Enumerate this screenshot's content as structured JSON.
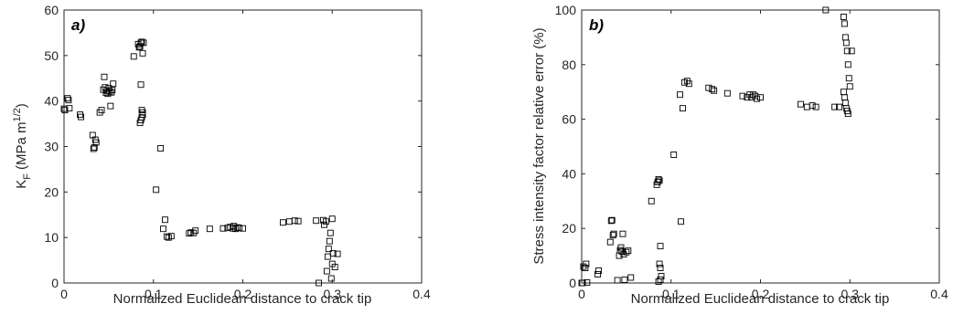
{
  "chart_data": [
    {
      "type": "scatter",
      "panel_label": "a)",
      "title": "",
      "xlabel": "Normalized Euclidean distance to crack tip",
      "ylabel": "K_F (MPa m^{1/2})",
      "ylabel_parts": {
        "k": "K",
        "sub": "F",
        "unit_open": "(MPa m",
        "sup": "1/2",
        "unit_close": ")"
      },
      "xlim": [
        0,
        0.4
      ],
      "ylim": [
        0,
        60
      ],
      "xticks": [
        0,
        0.1,
        0.2,
        0.3,
        0.4
      ],
      "xtick_labels": [
        "0",
        "0.1",
        "0.2",
        "0.3",
        "0.4"
      ],
      "yticks": [
        0,
        10,
        20,
        30,
        40,
        50,
        60
      ],
      "ytick_labels": [
        "0",
        "10",
        "20",
        "30",
        "40",
        "50",
        "60"
      ],
      "grid": false,
      "marker": "square",
      "x": [
        0.0,
        0.001,
        0.004,
        0.005,
        0.006,
        0.018,
        0.019,
        0.032,
        0.033,
        0.034,
        0.035,
        0.036,
        0.04,
        0.042,
        0.044,
        0.045,
        0.046,
        0.047,
        0.048,
        0.049,
        0.05,
        0.051,
        0.052,
        0.053,
        0.054,
        0.055,
        0.078,
        0.083,
        0.084,
        0.085,
        0.086,
        0.087,
        0.088,
        0.089,
        0.086,
        0.087,
        0.088,
        0.085,
        0.086,
        0.087,
        0.088,
        0.103,
        0.108,
        0.111,
        0.113,
        0.115,
        0.117,
        0.12,
        0.14,
        0.142,
        0.145,
        0.147,
        0.163,
        0.178,
        0.183,
        0.186,
        0.189,
        0.19,
        0.192,
        0.194,
        0.196,
        0.2,
        0.245,
        0.252,
        0.258,
        0.262,
        0.282,
        0.285,
        0.29,
        0.291,
        0.293,
        0.294,
        0.295,
        0.296,
        0.297,
        0.298,
        0.299,
        0.3,
        0.3,
        0.301,
        0.303,
        0.306
      ],
      "y": [
        38.3,
        38.0,
        40.6,
        40.2,
        38.4,
        37.0,
        36.5,
        32.5,
        29.5,
        29.8,
        31.5,
        30.9,
        37.5,
        38.0,
        42.5,
        45.3,
        43.0,
        41.8,
        42.3,
        41.6,
        42.8,
        42.1,
        38.9,
        41.9,
        42.4,
        43.8,
        49.8,
        52.5,
        51.8,
        52.0,
        52.8,
        53.0,
        50.5,
        52.8,
        43.6,
        38.0,
        37.5,
        35.2,
        35.8,
        36.4,
        37.0,
        20.5,
        29.6,
        11.9,
        13.9,
        10.2,
        10.0,
        10.3,
        10.9,
        11.1,
        11.0,
        11.5,
        11.9,
        12.0,
        12.1,
        12.3,
        12.0,
        12.5,
        11.9,
        12.2,
        12.1,
        12.0,
        13.3,
        13.5,
        13.7,
        13.6,
        13.7,
        0.0,
        13.8,
        12.8,
        13.5,
        2.6,
        5.8,
        7.5,
        9.2,
        11.0,
        1.0,
        4.2,
        14.1,
        6.5,
        3.5,
        6.4
      ]
    },
    {
      "type": "scatter",
      "panel_label": "b)",
      "title": "",
      "xlabel": "Normalized Euclidean distance to crack tip",
      "ylabel": "Stress intensity factor relative error (%)",
      "xlim": [
        0,
        0.4
      ],
      "ylim": [
        0,
        100
      ],
      "xticks": [
        0,
        0.1,
        0.2,
        0.3,
        0.4
      ],
      "xtick_labels": [
        "0",
        "0.1",
        "0.2",
        "0.3",
        "0.4"
      ],
      "yticks": [
        0,
        20,
        40,
        60,
        80,
        100
      ],
      "ytick_labels": [
        "0",
        "20",
        "40",
        "60",
        "80",
        "100"
      ],
      "grid": false,
      "marker": "square",
      "x": [
        0.0,
        0.001,
        0.002,
        0.004,
        0.005,
        0.006,
        0.018,
        0.019,
        0.032,
        0.033,
        0.034,
        0.035,
        0.036,
        0.04,
        0.042,
        0.043,
        0.044,
        0.045,
        0.046,
        0.047,
        0.048,
        0.05,
        0.052,
        0.055,
        0.078,
        0.084,
        0.085,
        0.086,
        0.087,
        0.088,
        0.087,
        0.088,
        0.086,
        0.088,
        0.089,
        0.103,
        0.11,
        0.111,
        0.113,
        0.115,
        0.118,
        0.12,
        0.142,
        0.146,
        0.148,
        0.163,
        0.18,
        0.185,
        0.188,
        0.19,
        0.192,
        0.194,
        0.196,
        0.2,
        0.245,
        0.252,
        0.258,
        0.262,
        0.283,
        0.288,
        0.273,
        0.293,
        0.294,
        0.295,
        0.296,
        0.297,
        0.298,
        0.299,
        0.3,
        0.293,
        0.294,
        0.295,
        0.296,
        0.297,
        0.298,
        0.302
      ],
      "y": [
        0.0,
        0.0,
        6.0,
        5.5,
        7.0,
        0.2,
        3.2,
        4.5,
        15.0,
        22.8,
        23.0,
        17.5,
        18.0,
        1.0,
        10.0,
        12.0,
        13.0,
        11.5,
        18.0,
        10.5,
        1.2,
        11.3,
        11.8,
        2.0,
        30.0,
        36.0,
        37.0,
        38.0,
        37.5,
        5.5,
        7.0,
        13.5,
        0.5,
        1.2,
        2.5,
        47.0,
        69.0,
        22.5,
        64.0,
        73.5,
        74.0,
        73.0,
        71.5,
        71.0,
        70.5,
        69.5,
        68.5,
        68.0,
        69.0,
        68.0,
        69.0,
        68.5,
        67.5,
        68.0,
        65.5,
        64.5,
        65.0,
        64.5,
        64.5,
        64.5,
        100.0,
        97.5,
        95.0,
        90.0,
        88.0,
        85.0,
        80.0,
        75.0,
        72.0,
        70.0,
        68.0,
        66.0,
        64.0,
        63.0,
        62.0,
        85.0
      ]
    }
  ]
}
